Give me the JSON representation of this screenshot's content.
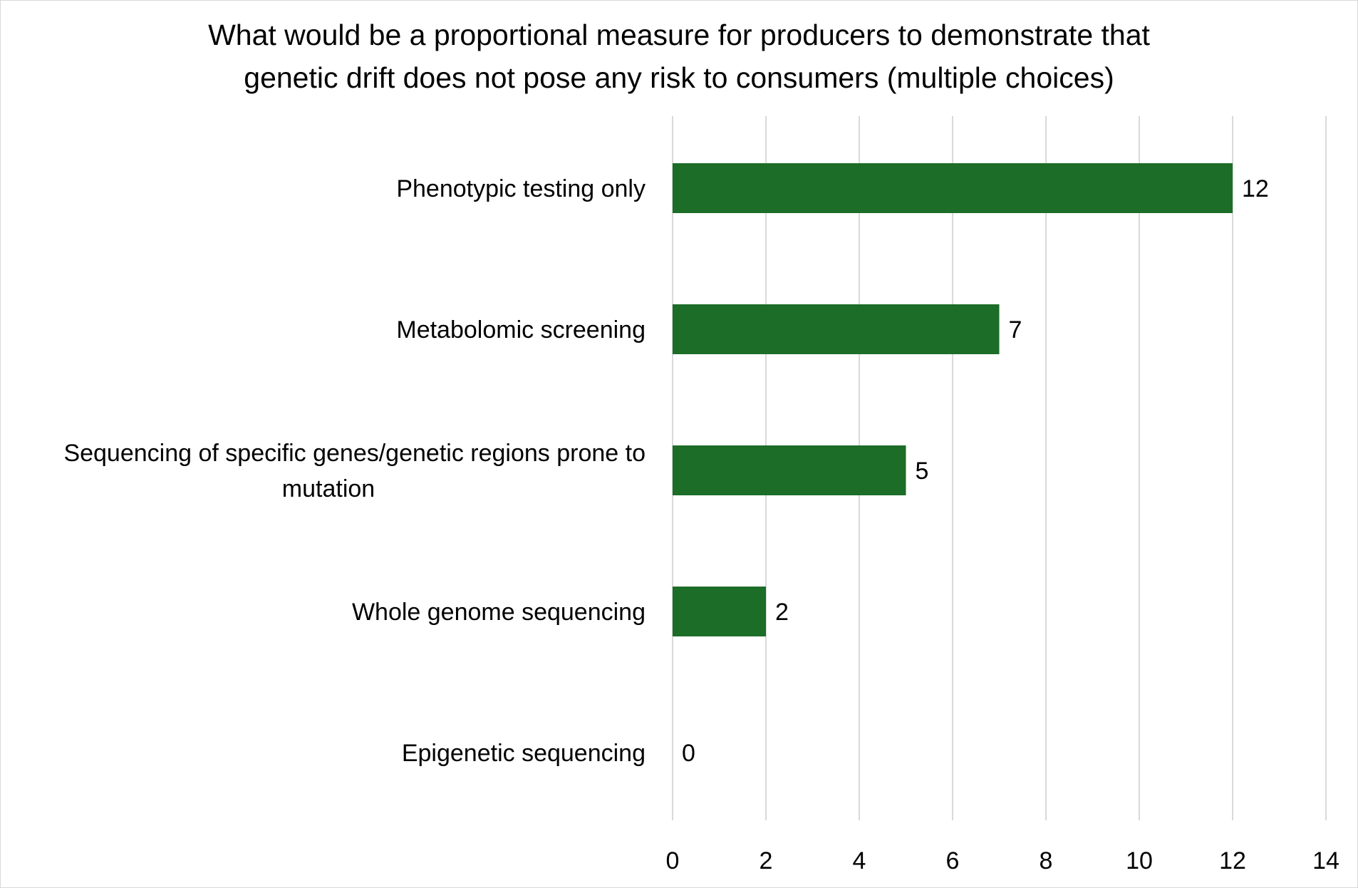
{
  "chart_data": {
    "type": "bar",
    "orientation": "horizontal",
    "title_lines": [
      "What would be a proportional measure for producers to demonstrate that",
      "genetic drift does not pose any risk to consumers (multiple choices)"
    ],
    "categories": [
      [
        "Phenotypic testing only"
      ],
      [
        "Metabolomic screening"
      ],
      [
        "Sequencing of specific genes/genetic regions prone to",
        "mutation"
      ],
      [
        "Whole genome sequencing"
      ],
      [
        "Epigenetic sequencing"
      ]
    ],
    "values": [
      12,
      7,
      5,
      2,
      0
    ],
    "data_labels": [
      "12",
      "7",
      "5",
      "2",
      "0"
    ],
    "xlim": [
      0,
      14
    ],
    "xticks": [
      0,
      2,
      4,
      6,
      8,
      10,
      12,
      14
    ],
    "xtick_labels": [
      "0",
      "2",
      "4",
      "6",
      "8",
      "10",
      "12",
      "14"
    ],
    "grid": "vertical",
    "legend": "none",
    "bar_color": "#1b6d27",
    "grid_color": "#d9d9d9"
  }
}
